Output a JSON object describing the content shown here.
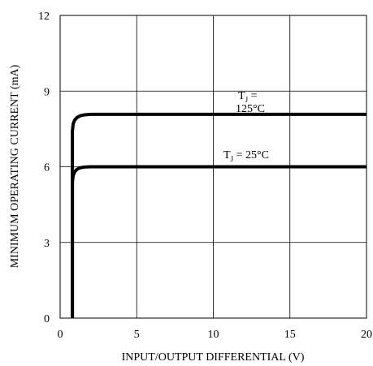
{
  "chart_data": {
    "type": "line",
    "xlabel": "INPUT/OUTPUT DIFFERENTIAL (V)",
    "ylabel": "MINIMUM OPERATING CURRENT (mA)",
    "xlim": [
      0,
      20
    ],
    "ylim": [
      0,
      12
    ],
    "x_ticks": [
      "0",
      "5",
      "10",
      "15",
      "20"
    ],
    "y_ticks": [
      "0",
      "3",
      "6",
      "9",
      "12"
    ],
    "grid": true,
    "series": [
      {
        "name": "TJ = 125°C",
        "x": [
          0.8,
          0.8,
          0.85,
          0.95,
          1.1,
          1.3,
          1.6,
          2.0,
          20
        ],
        "y": [
          0,
          7.4,
          7.7,
          7.85,
          7.95,
          8.02,
          8.06,
          8.08,
          8.08
        ]
      },
      {
        "name": "TJ = 25°C",
        "x": [
          0.8,
          0.8,
          0.85,
          0.95,
          1.1,
          1.3,
          1.6,
          2.0,
          20
        ],
        "y": [
          0,
          5.4,
          5.65,
          5.8,
          5.9,
          5.96,
          5.99,
          6.0,
          6.0
        ]
      }
    ],
    "annotations": [
      {
        "main": "T",
        "sub": "J",
        "rest_line1": " =",
        "rest_line2": "125°C"
      },
      {
        "main": "T",
        "sub": "J",
        "rest": " = 25°C"
      }
    ]
  }
}
